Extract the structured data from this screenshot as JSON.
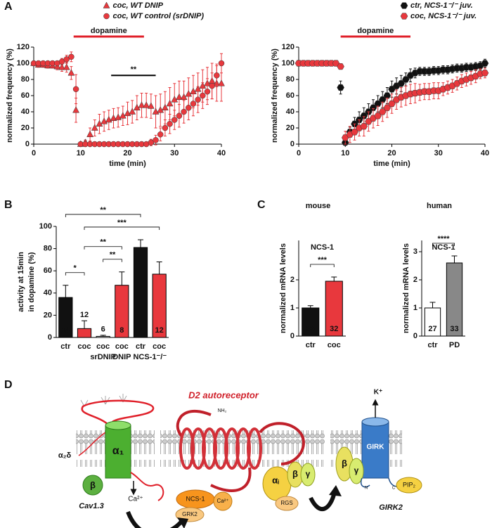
{
  "panel_labels": [
    "A",
    "B",
    "C",
    "D"
  ],
  "chart_data": [
    {
      "type": "scatter",
      "xlabel": "time (min)",
      "ylabel": "normalized frequency (%)",
      "xlim": [
        0,
        40
      ],
      "xticks": [
        0,
        10,
        20,
        30,
        40
      ],
      "ylim": [
        0,
        120
      ],
      "yticks": [
        0,
        20,
        40,
        60,
        80,
        100,
        120
      ],
      "legend": "top",
      "series": [
        {
          "name": "coc, WT DNIP",
          "color": "#e8383d",
          "marker": "triangle",
          "x": [
            0,
            1,
            2,
            3,
            4,
            5,
            6,
            7,
            8,
            9,
            10,
            11,
            12,
            13,
            14,
            15,
            16,
            17,
            18,
            19,
            20,
            21,
            22,
            23,
            24,
            25,
            26,
            27,
            28,
            29,
            30,
            31,
            32,
            33,
            34,
            35,
            36,
            37,
            38,
            39,
            40
          ],
          "values": [
            100,
            98,
            98,
            97,
            97,
            96,
            95,
            95,
            88,
            42,
            0,
            2,
            12,
            20,
            25,
            28,
            30,
            32,
            33,
            35,
            38,
            40,
            45,
            48,
            48,
            47,
            40,
            42,
            45,
            50,
            55,
            58,
            58,
            62,
            65,
            68,
            72,
            75,
            78,
            75,
            75
          ],
          "errors": [
            3,
            3,
            3,
            3,
            3,
            4,
            5,
            6,
            8,
            15,
            2,
            3,
            8,
            10,
            12,
            12,
            12,
            12,
            12,
            12,
            14,
            14,
            15,
            15,
            15,
            15,
            20,
            20,
            20,
            20,
            20,
            20,
            20,
            20,
            20,
            20,
            20,
            20,
            22,
            22,
            22
          ]
        },
        {
          "name": "coc, WT control (srDNIP)",
          "color": "#e8383d",
          "marker": "circle",
          "x": [
            0,
            1,
            2,
            3,
            4,
            5,
            6,
            7,
            8,
            9,
            10,
            11,
            12,
            13,
            14,
            15,
            16,
            17,
            18,
            19,
            20,
            21,
            22,
            23,
            24,
            25,
            26,
            27,
            28,
            29,
            30,
            31,
            32,
            33,
            34,
            35,
            36,
            37,
            38,
            39,
            40
          ],
          "values": [
            100,
            100,
            100,
            100,
            100,
            100,
            102,
            105,
            108,
            68,
            0,
            0,
            0,
            0,
            0,
            0,
            0,
            0,
            0,
            0,
            0,
            0,
            0,
            0,
            0,
            2,
            5,
            12,
            20,
            25,
            30,
            35,
            40,
            45,
            50,
            55,
            60,
            65,
            72,
            85,
            100
          ],
          "errors": [
            3,
            3,
            3,
            3,
            3,
            3,
            4,
            5,
            6,
            18,
            2,
            2,
            2,
            2,
            2,
            2,
            2,
            2,
            2,
            2,
            2,
            2,
            2,
            2,
            2,
            4,
            6,
            8,
            10,
            12,
            12,
            14,
            14,
            15,
            15,
            16,
            16,
            16,
            16,
            14,
            12
          ]
        }
      ],
      "annotations": [
        {
          "text": "dopamine",
          "x": [
            8.5,
            23.5
          ],
          "color": "#e0202a"
        },
        {
          "text": "**",
          "x": [
            16.5,
            26
          ],
          "y": 85
        }
      ]
    },
    {
      "type": "scatter",
      "xlabel": "time (min)",
      "ylabel": "normalized frequency (%)",
      "xlim": [
        0,
        40
      ],
      "xticks": [
        0,
        10,
        20,
        30,
        40
      ],
      "ylim": [
        0,
        120
      ],
      "yticks": [
        0,
        20,
        40,
        60,
        80,
        100,
        120
      ],
      "legend": "top-right",
      "series": [
        {
          "name": "ctr, NCS-1⁻/⁻ juv.",
          "color": "#111111",
          "marker": "hexagon",
          "x": [
            9,
            10,
            11,
            12,
            13,
            14,
            15,
            16,
            17,
            18,
            19,
            20,
            21,
            22,
            23,
            24,
            25,
            26,
            27,
            28,
            29,
            30,
            31,
            32,
            33,
            34,
            35,
            36,
            37,
            38,
            39,
            40
          ],
          "values": [
            70,
            2,
            15,
            25,
            30,
            35,
            40,
            45,
            50,
            55,
            60,
            68,
            72,
            75,
            80,
            85,
            88,
            90,
            90,
            90,
            91,
            91,
            92,
            92,
            93,
            94,
            94,
            95,
            95,
            96,
            97,
            100
          ],
          "errors": [
            8,
            3,
            6,
            8,
            10,
            10,
            10,
            10,
            10,
            10,
            10,
            10,
            10,
            10,
            8,
            8,
            6,
            5,
            5,
            5,
            5,
            5,
            5,
            5,
            5,
            5,
            5,
            5,
            5,
            5,
            5,
            5
          ]
        },
        {
          "name": "coc, NCS-1⁻/⁻ juv.",
          "color": "#e8383d",
          "marker": "hexagon",
          "x": [
            0,
            1,
            2,
            3,
            4,
            5,
            6,
            7,
            8,
            9,
            10,
            11,
            12,
            13,
            14,
            15,
            16,
            17,
            18,
            19,
            20,
            21,
            22,
            23,
            24,
            25,
            26,
            27,
            28,
            29,
            30,
            31,
            32,
            33,
            34,
            35,
            36,
            37,
            38,
            39,
            40
          ],
          "values": [
            100,
            100,
            100,
            100,
            100,
            100,
            100,
            100,
            100,
            96,
            8,
            12,
            15,
            20,
            22,
            28,
            32,
            35,
            40,
            45,
            50,
            55,
            58,
            60,
            62,
            63,
            64,
            65,
            65,
            66,
            66,
            68,
            70,
            72,
            75,
            78,
            80,
            82,
            84,
            87,
            88
          ],
          "errors": [
            2,
            2,
            2,
            2,
            2,
            2,
            2,
            2,
            2,
            3,
            8,
            10,
            10,
            10,
            12,
            12,
            12,
            12,
            12,
            12,
            12,
            12,
            12,
            12,
            12,
            12,
            10,
            10,
            10,
            10,
            10,
            8,
            8,
            8,
            8,
            8,
            8,
            8,
            8,
            6,
            6
          ]
        }
      ],
      "annotations": [
        {
          "text": "dopamine",
          "x": [
            9,
            24
          ],
          "color": "#e0202a"
        }
      ]
    },
    {
      "type": "bar",
      "ylabel": [
        "activity at 15min",
        "in dopamine (%)"
      ],
      "categories": [
        "ctr",
        "coc",
        "coc",
        "coc",
        "ctr",
        "coc"
      ],
      "values": [
        36,
        8,
        1,
        47,
        81,
        57
      ],
      "errors": [
        11,
        7,
        1,
        12,
        7,
        11
      ],
      "n": [
        14,
        12,
        6,
        8,
        7,
        12
      ],
      "colors": [
        "#111111",
        "#e8383d",
        "#ffffff",
        "#e8383d",
        "#111111",
        "#e8383d"
      ],
      "ylim": [
        0,
        100
      ],
      "yticks": [
        0,
        20,
        40,
        60,
        80,
        100
      ],
      "groups": [
        {
          "label": "srDNIP",
          "bars": [
            2
          ]
        },
        {
          "label": "DNIP",
          "bars": [
            3
          ]
        },
        {
          "label": "NCS-1⁻/⁻",
          "bars": [
            4,
            5
          ]
        }
      ],
      "significance": [
        {
          "label": "***",
          "bars": [
            1,
            5
          ]
        },
        {
          "label": "**",
          "bars": [
            0,
            4
          ]
        },
        {
          "label": "**",
          "bars": [
            1,
            3
          ]
        },
        {
          "label": "*",
          "bars": [
            0,
            1
          ]
        },
        {
          "label": "**",
          "bars": [
            2,
            3
          ]
        }
      ]
    },
    {
      "type": "bar",
      "subtitle": "mouse",
      "title": "NCS-1",
      "ylabel": [
        "normalized mRNA levels"
      ],
      "categories": [
        "ctr",
        "coc"
      ],
      "values": [
        1.0,
        1.95
      ],
      "errors": [
        0.08,
        0.15
      ],
      "n": [
        36,
        32
      ],
      "colors": [
        "#111111",
        "#e8383d"
      ],
      "ylim": [
        0,
        3.4
      ],
      "yticks": [
        0,
        1,
        2
      ],
      "significance": [
        {
          "label": "***",
          "bars": [
            0,
            1
          ]
        }
      ]
    },
    {
      "type": "bar",
      "subtitle": "human",
      "title": "NCS-1",
      "ylabel": [
        "normalized mRNA levels"
      ],
      "categories": [
        "ctr",
        "PD"
      ],
      "values": [
        1.0,
        2.6
      ],
      "errors": [
        0.2,
        0.25
      ],
      "n": [
        27,
        33
      ],
      "colors": [
        "#ffffff",
        "#888888"
      ],
      "ylim": [
        0,
        3.4
      ],
      "yticks": [
        0,
        1,
        2,
        3
      ],
      "significance": [
        {
          "label": "****",
          "bars": [
            0,
            1
          ]
        }
      ]
    }
  ],
  "diagram": {
    "labels": [
      "D2 autoreceptor",
      "NH₂",
      "α₂δ",
      "α₁",
      "β",
      "Cav1.3",
      "Ca²⁺",
      "NCS-1",
      "Ca²⁺",
      "GRK2",
      "αᵢ",
      "RGS",
      "β",
      "γ",
      "K⁺",
      "GIRK",
      "β",
      "γ",
      "N",
      "C",
      "PIP₂",
      "GIRK2"
    ]
  }
}
